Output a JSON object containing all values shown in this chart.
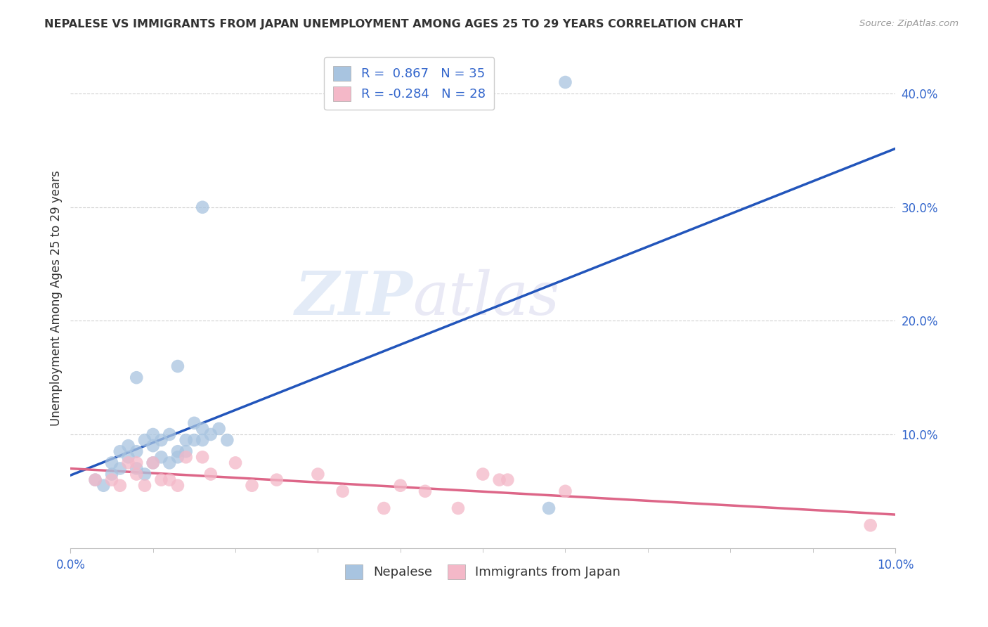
{
  "title": "NEPALESE VS IMMIGRANTS FROM JAPAN UNEMPLOYMENT AMONG AGES 25 TO 29 YEARS CORRELATION CHART",
  "source": "Source: ZipAtlas.com",
  "ylabel_label": "Unemployment Among Ages 25 to 29 years",
  "xlim": [
    0.0,
    0.1
  ],
  "ylim": [
    0.0,
    0.44
  ],
  "xtick_positions": [
    0.0,
    0.1
  ],
  "xticklabels": [
    "0.0%",
    "10.0%"
  ],
  "ytick_positions": [
    0.1,
    0.2,
    0.3,
    0.4
  ],
  "yticklabels": [
    "10.0%",
    "20.0%",
    "30.0%",
    "40.0%"
  ],
  "nepalese_color": "#a8c4e0",
  "japan_color": "#f4b8c8",
  "nepalese_line_color": "#2255bb",
  "japan_line_color": "#dd6688",
  "R_nepalese": 0.867,
  "N_nepalese": 35,
  "R_japan": -0.284,
  "N_japan": 28,
  "nepalese_x": [
    0.003,
    0.004,
    0.005,
    0.005,
    0.006,
    0.006,
    0.007,
    0.007,
    0.008,
    0.008,
    0.009,
    0.009,
    0.01,
    0.01,
    0.01,
    0.011,
    0.011,
    0.012,
    0.012,
    0.013,
    0.013,
    0.014,
    0.014,
    0.015,
    0.015,
    0.016,
    0.016,
    0.017,
    0.018,
    0.019,
    0.013,
    0.016,
    0.008,
    0.058,
    0.06
  ],
  "nepalese_y": [
    0.06,
    0.055,
    0.065,
    0.075,
    0.07,
    0.085,
    0.08,
    0.09,
    0.085,
    0.07,
    0.095,
    0.065,
    0.1,
    0.09,
    0.075,
    0.095,
    0.08,
    0.1,
    0.075,
    0.085,
    0.08,
    0.095,
    0.085,
    0.095,
    0.11,
    0.105,
    0.095,
    0.1,
    0.105,
    0.095,
    0.16,
    0.3,
    0.15,
    0.035,
    0.41
  ],
  "japan_x": [
    0.003,
    0.005,
    0.006,
    0.007,
    0.008,
    0.008,
    0.009,
    0.01,
    0.011,
    0.012,
    0.013,
    0.014,
    0.016,
    0.017,
    0.02,
    0.022,
    0.025,
    0.03,
    0.033,
    0.038,
    0.04,
    0.043,
    0.047,
    0.05,
    0.052,
    0.053,
    0.06,
    0.097
  ],
  "japan_y": [
    0.06,
    0.06,
    0.055,
    0.075,
    0.065,
    0.075,
    0.055,
    0.075,
    0.06,
    0.06,
    0.055,
    0.08,
    0.08,
    0.065,
    0.075,
    0.055,
    0.06,
    0.065,
    0.05,
    0.035,
    0.055,
    0.05,
    0.035,
    0.065,
    0.06,
    0.06,
    0.05,
    0.02
  ],
  "watermark_zip": "ZIP",
  "watermark_atlas": "atlas",
  "background_color": "#ffffff",
  "grid_color": "#cccccc",
  "legend_nepalese": "Nepalese",
  "legend_japan": "Immigrants from Japan"
}
